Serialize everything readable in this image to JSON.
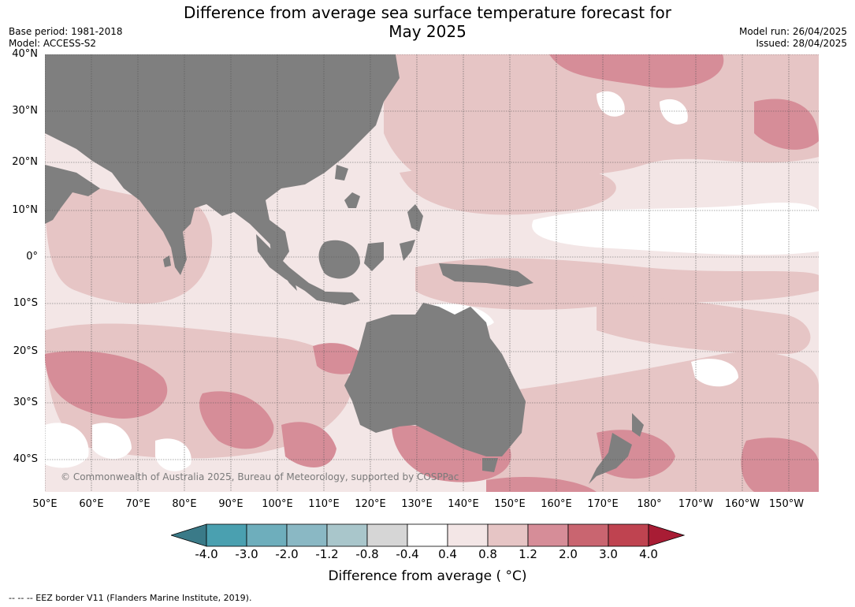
{
  "title_line1": "Difference from average sea surface temperature forecast for",
  "title_line2": "May 2025",
  "meta": {
    "base_period": "Base period: 1981-2018",
    "model": "Model: ACCESS-S2",
    "model_run": "Model run: 26/04/2025",
    "issued": "Issued: 28/04/2025"
  },
  "lat_labels": [
    "40°N",
    "30°N",
    "20°N",
    "10°N",
    "0°",
    "10°S",
    "20°S",
    "30°S",
    "40°S"
  ],
  "lon_labels": [
    "50°E",
    "60°E",
    "70°E",
    "80°E",
    "90°E",
    "100°E",
    "110°E",
    "120°E",
    "130°E",
    "140°E",
    "150°E",
    "160°E",
    "170°E",
    "180°",
    "170°W",
    "160°W",
    "150°W"
  ],
  "copyright": "© Commonwealth of Australia 2025, Bureau of Meteorology, supported by COSPPac",
  "colorbar": {
    "ticks": [
      "-4.0",
      "-3.0",
      "-2.0",
      "-1.2",
      "-0.8",
      "-0.4",
      "0.4",
      "0.8",
      "1.2",
      "2.0",
      "3.0",
      "4.0"
    ],
    "colors": [
      "#3a7a88",
      "#4aa0b0",
      "#6eaebc",
      "#8ab8c4",
      "#a9c6cb",
      "#d6d6d6",
      "#ffffff",
      "#f3e6e6",
      "#e6c5c5",
      "#d68d98",
      "#c96570",
      "#bf4350",
      "#a81c34"
    ],
    "title": "Difference from average ( °C)"
  },
  "footer": "--  --  -- EEZ border V11 (Flanders Marine Institute, 2019).",
  "colors": {
    "land": "#7f7f7f",
    "ocean_base": "#f3e6e6"
  }
}
